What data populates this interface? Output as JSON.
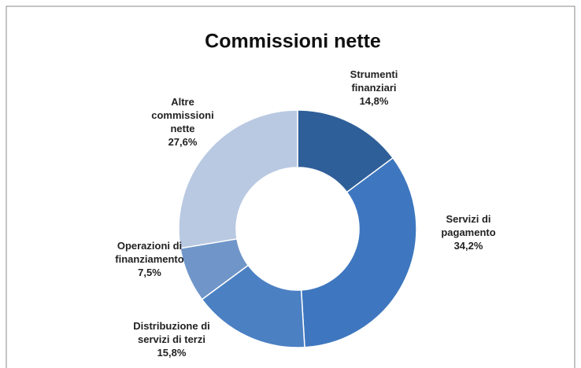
{
  "chart_data": {
    "type": "donut",
    "title": "Commissioni nette",
    "categories": [
      "Strumenti finanziari",
      "Servizi di pagamento",
      "Distribuzione di servizi di terzi",
      "Operazioni di finanziamento",
      "Altre commissioni nette"
    ],
    "values": [
      14.8,
      34.2,
      15.8,
      7.5,
      27.6
    ],
    "value_labels": [
      "14,8%",
      "34,2%",
      "15,8%",
      "7,5%",
      "27,6%"
    ],
    "colors": [
      "#2f5f99",
      "#3e77bf",
      "#4b80c3",
      "#7096c9",
      "#b9c9e2"
    ]
  }
}
